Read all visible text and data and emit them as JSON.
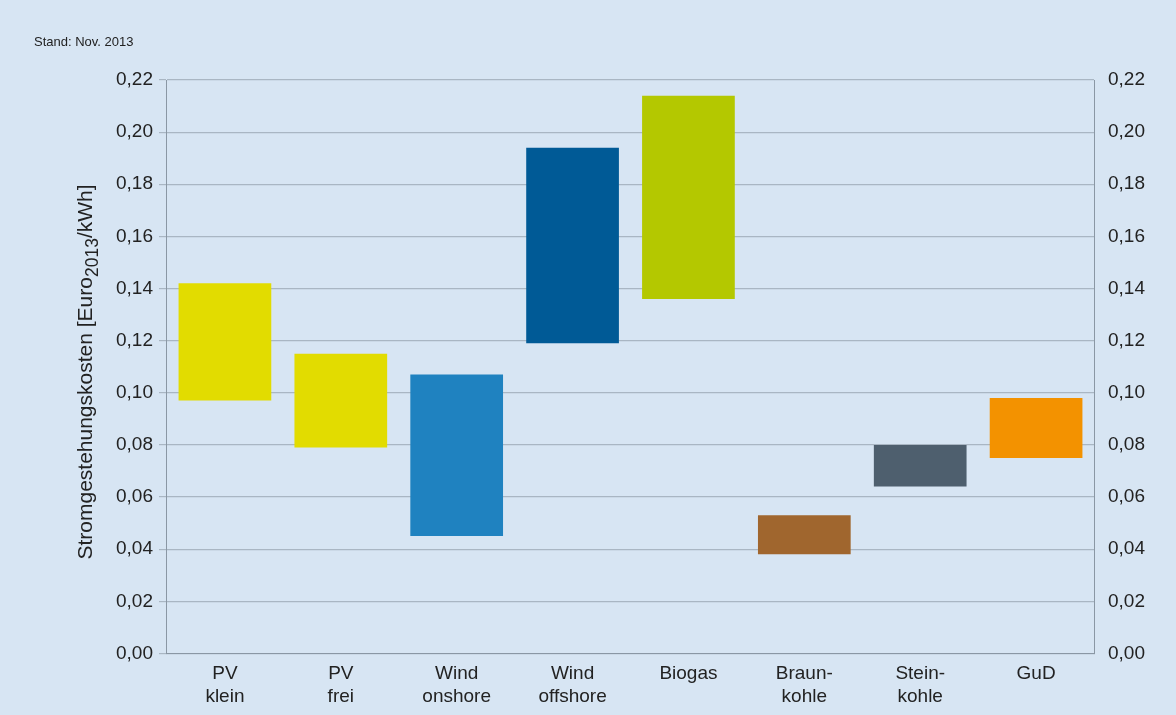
{
  "chart_data": {
    "type": "bar",
    "ylabel": "Stromgestehungskosten [Euro$_{2013}$/kWh]",
    "annotations": [
      "Stand: Nov. 2013"
    ],
    "categories": [
      "PV\nklein",
      "PV\nfrei",
      "Wind\nonshore",
      "Wind\noffshore",
      "Biogas",
      "Braun-\nkohle",
      "Stein-\nkohle",
      "GuD"
    ],
    "base": [
      0.097,
      0.079,
      0.045,
      0.119,
      0.136,
      0.038,
      0.064,
      0.075
    ],
    "values": [
      0.045,
      0.036,
      0.062,
      0.075,
      0.078,
      0.015,
      0.016,
      0.023
    ],
    "colors": [
      "#e2dc00",
      "#e2dc00",
      "#1f82c0",
      "#005a96",
      "#b4c800",
      "#a0662e",
      "#4e5f6e",
      "#f39200"
    ],
    "ylim": [
      0,
      0.22
    ],
    "yticks": [
      {
        "value": 0,
        "label": "0,00"
      },
      {
        "value": 0.02,
        "label": "0,02"
      },
      {
        "value": 0.04,
        "label": "0,04"
      },
      {
        "value": 0.06,
        "label": "0,06"
      },
      {
        "value": 0.08,
        "label": "0,08"
      },
      {
        "value": 0.1,
        "label": "0,10"
      },
      {
        "value": 0.12,
        "label": "0,12"
      },
      {
        "value": 0.14,
        "label": "0,14"
      },
      {
        "value": 0.16,
        "label": "0,16"
      },
      {
        "value": 0.18,
        "label": "0,18"
      },
      {
        "value": 0.2,
        "label": "0,20"
      },
      {
        "value": 0.22,
        "label": "0,22"
      }
    ],
    "y2lim": [
      0,
      0.22
    ],
    "y2ticks": [
      {
        "value": 0,
        "label": "0,00"
      },
      {
        "value": 0.02,
        "label": "0,02"
      },
      {
        "value": 0.04,
        "label": "0,04"
      },
      {
        "value": 0.06,
        "label": "0,06"
      },
      {
        "value": 0.08,
        "label": "0,08"
      },
      {
        "value": 0.1,
        "label": "0,10"
      },
      {
        "value": 0.12,
        "label": "0,12"
      },
      {
        "value": 0.14,
        "label": "0,14"
      },
      {
        "value": 0.16,
        "label": "0,16"
      },
      {
        "value": 0.18,
        "label": "0,18"
      },
      {
        "value": 0.2,
        "label": "0,20"
      },
      {
        "value": 0.22,
        "label": "0,22"
      }
    ],
    "grid": "y",
    "legend": false
  }
}
